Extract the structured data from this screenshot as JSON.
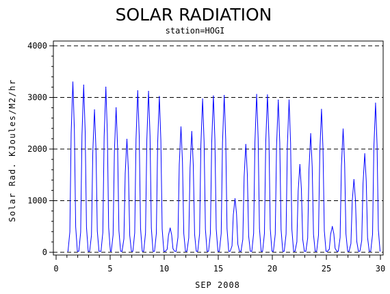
{
  "chart_data": {
    "type": "line",
    "title": "SOLAR RADIATION",
    "subtitle": "station=HOGI",
    "xlabel": "SEP 2008",
    "ylabel": "Solar Rad. KJoules/M2/hr",
    "xlim": [
      0,
      30
    ],
    "ylim": [
      0,
      4000
    ],
    "xticks": [
      0,
      5,
      10,
      15,
      20,
      25,
      30
    ],
    "yticks": [
      0,
      1000,
      2000,
      3000,
      4000
    ],
    "grid": "horizontal dashed at y ticks",
    "series": [
      {
        "color": "#0000ff",
        "daily_peaks": [
          [
            1.55,
            3300
          ],
          [
            2.55,
            3240
          ],
          [
            3.55,
            2760
          ],
          [
            4.6,
            3200
          ],
          [
            5.55,
            2800
          ],
          [
            6.55,
            2190
          ],
          [
            7.55,
            3130
          ],
          [
            8.55,
            3120
          ],
          [
            9.55,
            3020
          ],
          [
            10.55,
            470
          ],
          [
            11.55,
            2430
          ],
          [
            12.55,
            2340
          ],
          [
            13.55,
            2970
          ],
          [
            14.55,
            3030
          ],
          [
            15.55,
            3040
          ],
          [
            16.55,
            1040
          ],
          [
            17.55,
            2090
          ],
          [
            18.55,
            3060
          ],
          [
            19.55,
            3050
          ],
          [
            20.55,
            2950
          ],
          [
            21.55,
            2950
          ],
          [
            22.55,
            1700
          ],
          [
            23.55,
            2300
          ],
          [
            24.55,
            2770
          ],
          [
            25.55,
            500
          ],
          [
            26.55,
            2390
          ],
          [
            27.55,
            1410
          ],
          [
            28.55,
            1910
          ],
          [
            29.55,
            2890
          ]
        ],
        "night_level": 20
      }
    ]
  }
}
